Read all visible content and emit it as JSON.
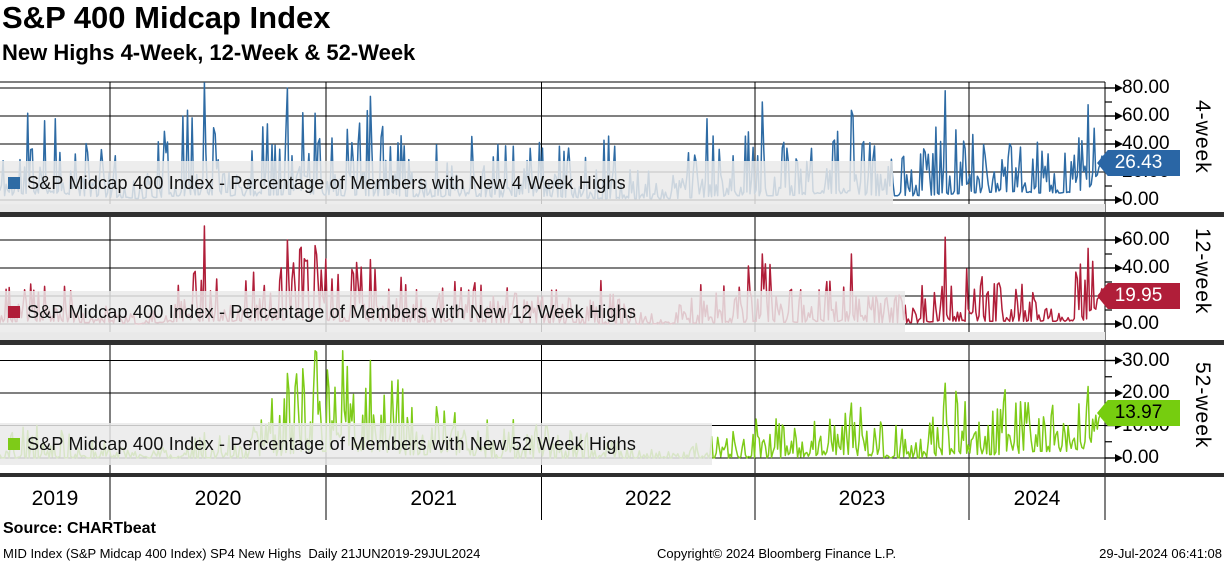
{
  "header": {
    "title": "S&P 400 Midcap Index",
    "subtitle": "New Highs 4-Week, 12-Week & 52-Week"
  },
  "panels": [
    {
      "side_label": "4-week",
      "legend": "S&P Midcap 400 Index - Percentage of Members with New 4 Week Highs",
      "last_value_label": "26.43",
      "line_color": "#2e6ba4",
      "badge_color": "#2a66a5",
      "badge_text_color": "#ffffff",
      "ytick_labels": [
        "0.00",
        "20.00",
        "40.00",
        "60.00",
        "80.00"
      ]
    },
    {
      "side_label": "12-week",
      "legend": "S&P Midcap 400 Index - Percentage of Members with New 12 Week Highs",
      "last_value_label": "19.95",
      "line_color": "#b01e39",
      "badge_color": "#b01e39",
      "badge_text_color": "#ffffff",
      "ytick_labels": [
        "0.00",
        "20.00",
        "40.00",
        "60.00"
      ]
    },
    {
      "side_label": "52-week",
      "legend": "S&P Midcap 400 Index - Percentage of Members with New 52 Week Highs",
      "last_value_label": "13.97",
      "line_color": "#7ecb18",
      "badge_color": "#76cd0f",
      "badge_text_color": "#000000",
      "ytick_labels": [
        "0.00",
        "10.00",
        "20.00",
        "30.00"
      ]
    }
  ],
  "xaxis": {
    "year_labels": [
      "2019",
      "2020",
      "2021",
      "2022",
      "2023",
      "2024"
    ]
  },
  "footer": {
    "source": "Source: CHARTbeat",
    "description": "MID Index (S&P Midcap 400 Index) SP4 New Highs  Daily 21JUN2019-29JUL2024",
    "copyright": "Copyright© 2024 Bloomberg Finance L.P.",
    "timestamp": "29-Jul-2024 06:41:08"
  },
  "chart_data": {
    "type": "line",
    "title": "S&P 400 Midcap Index",
    "subtitle": "New Highs 4-Week, 12-Week & 52-Week",
    "x_range": {
      "start": "21JUN2019",
      "end": "29JUL2024",
      "frequency": "Daily"
    },
    "x_tick_years": [
      "2019",
      "2020",
      "2021",
      "2022",
      "2023",
      "2024"
    ],
    "grid": true,
    "legend_position": "inside-lower-left",
    "series": [
      {
        "name": "4-week",
        "legend": "S&P Midcap 400 Index - Percentage of Members with New 4 Week Highs",
        "color": "#2e6ba4",
        "last_value": 26.43,
        "ylim": [
          0,
          84
        ],
        "yticks": [
          0,
          20,
          40,
          60,
          80
        ],
        "minor_yticks": [
          10,
          30,
          50,
          70
        ],
        "peak_force_min": 55,
        "envelope_points": [
          [
            0.0,
            3,
            45
          ],
          [
            0.025,
            4,
            62
          ],
          [
            0.05,
            5,
            58
          ],
          [
            0.075,
            3,
            45
          ],
          [
            0.1,
            2,
            38
          ],
          [
            0.125,
            1,
            12
          ],
          [
            0.145,
            2,
            50
          ],
          [
            0.165,
            3,
            60
          ],
          [
            0.185,
            4,
            84
          ],
          [
            0.205,
            3,
            50
          ],
          [
            0.23,
            3,
            52
          ],
          [
            0.26,
            4,
            80
          ],
          [
            0.285,
            4,
            62
          ],
          [
            0.31,
            3,
            52
          ],
          [
            0.335,
            3,
            74
          ],
          [
            0.36,
            3,
            48
          ],
          [
            0.39,
            2,
            42
          ],
          [
            0.42,
            3,
            50
          ],
          [
            0.45,
            2,
            40
          ],
          [
            0.48,
            3,
            46
          ],
          [
            0.51,
            2,
            38
          ],
          [
            0.545,
            1,
            52
          ],
          [
            0.575,
            1,
            24
          ],
          [
            0.61,
            1,
            18
          ],
          [
            0.64,
            2,
            58
          ],
          [
            0.665,
            3,
            50
          ],
          [
            0.69,
            3,
            70
          ],
          [
            0.715,
            3,
            42
          ],
          [
            0.745,
            5,
            42
          ],
          [
            0.77,
            4,
            64
          ],
          [
            0.8,
            3,
            38
          ],
          [
            0.83,
            3,
            32
          ],
          [
            0.855,
            4,
            78
          ],
          [
            0.88,
            5,
            52
          ],
          [
            0.91,
            6,
            48
          ],
          [
            0.94,
            5,
            42
          ],
          [
            0.965,
            5,
            38
          ],
          [
            0.985,
            8,
            68
          ],
          [
            1.0,
            26.43,
            26.43
          ]
        ]
      },
      {
        "name": "12-week",
        "legend": "S&P Midcap 400 Index - Percentage of Members with New 12 Week Highs",
        "color": "#b01e39",
        "last_value": 19.95,
        "ylim": [
          0,
          76
        ],
        "yticks": [
          0,
          20,
          40,
          60
        ],
        "minor_yticks": [
          10,
          30,
          50
        ],
        "peak_force_min": 45,
        "envelope_points": [
          [
            0.0,
            1,
            24
          ],
          [
            0.025,
            2,
            34
          ],
          [
            0.05,
            2,
            30
          ],
          [
            0.075,
            1,
            22
          ],
          [
            0.1,
            1,
            16
          ],
          [
            0.125,
            0,
            6
          ],
          [
            0.145,
            1,
            22
          ],
          [
            0.165,
            2,
            35
          ],
          [
            0.185,
            2,
            70
          ],
          [
            0.205,
            2,
            32
          ],
          [
            0.23,
            2,
            40
          ],
          [
            0.26,
            3,
            60
          ],
          [
            0.285,
            3,
            56
          ],
          [
            0.31,
            2,
            44
          ],
          [
            0.335,
            2,
            46
          ],
          [
            0.36,
            2,
            34
          ],
          [
            0.39,
            1,
            28
          ],
          [
            0.42,
            2,
            32
          ],
          [
            0.45,
            1,
            26
          ],
          [
            0.48,
            1,
            28
          ],
          [
            0.51,
            1,
            24
          ],
          [
            0.545,
            0,
            32
          ],
          [
            0.575,
            0,
            14
          ],
          [
            0.61,
            0,
            10
          ],
          [
            0.64,
            1,
            40
          ],
          [
            0.665,
            1,
            34
          ],
          [
            0.69,
            2,
            50
          ],
          [
            0.715,
            1,
            26
          ],
          [
            0.745,
            2,
            28
          ],
          [
            0.77,
            2,
            50
          ],
          [
            0.8,
            1,
            26
          ],
          [
            0.83,
            1,
            20
          ],
          [
            0.855,
            2,
            62
          ],
          [
            0.88,
            2,
            38
          ],
          [
            0.91,
            2,
            34
          ],
          [
            0.94,
            2,
            28
          ],
          [
            0.965,
            2,
            26
          ],
          [
            0.985,
            3,
            54
          ],
          [
            1.0,
            19.95,
            19.95
          ]
        ]
      },
      {
        "name": "52-week",
        "legend": "S&P Midcap 400 Index - Percentage of Members with New 52 Week Highs",
        "color": "#7ecb18",
        "last_value": 13.97,
        "ylim": [
          0,
          34
        ],
        "yticks": [
          0,
          10,
          20,
          30
        ],
        "minor_yticks": [
          5,
          15,
          25
        ],
        "peak_force_min": 20,
        "envelope_points": [
          [
            0.0,
            0,
            7
          ],
          [
            0.025,
            0,
            11
          ],
          [
            0.05,
            0,
            9
          ],
          [
            0.075,
            0,
            7
          ],
          [
            0.1,
            0,
            5
          ],
          [
            0.125,
            0,
            2
          ],
          [
            0.145,
            0,
            3
          ],
          [
            0.165,
            0,
            5
          ],
          [
            0.185,
            0,
            8
          ],
          [
            0.205,
            0,
            7
          ],
          [
            0.23,
            0,
            11
          ],
          [
            0.26,
            1,
            26
          ],
          [
            0.285,
            2,
            33
          ],
          [
            0.31,
            2,
            33
          ],
          [
            0.335,
            2,
            30
          ],
          [
            0.36,
            1,
            24
          ],
          [
            0.39,
            1,
            17
          ],
          [
            0.42,
            1,
            14
          ],
          [
            0.45,
            0,
            11
          ],
          [
            0.48,
            0,
            13
          ],
          [
            0.51,
            0,
            9
          ],
          [
            0.545,
            0,
            7
          ],
          [
            0.575,
            0,
            4
          ],
          [
            0.61,
            0,
            2
          ],
          [
            0.64,
            0,
            6
          ],
          [
            0.665,
            0,
            10
          ],
          [
            0.69,
            0,
            15
          ],
          [
            0.715,
            0,
            9
          ],
          [
            0.745,
            1,
            13
          ],
          [
            0.77,
            1,
            19
          ],
          [
            0.8,
            0,
            11
          ],
          [
            0.83,
            0,
            9
          ],
          [
            0.855,
            1,
            23
          ],
          [
            0.885,
            1,
            17
          ],
          [
            0.91,
            1,
            21
          ],
          [
            0.94,
            2,
            17
          ],
          [
            0.965,
            2,
            19
          ],
          [
            0.985,
            3,
            22
          ],
          [
            1.0,
            13.97,
            13.97
          ]
        ]
      }
    ]
  }
}
